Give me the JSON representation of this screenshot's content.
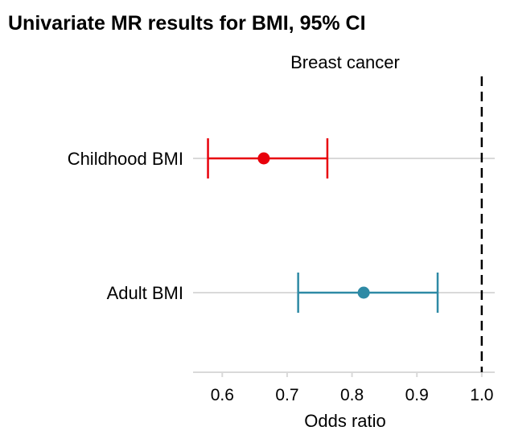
{
  "chart_data": {
    "type": "forest",
    "title": "Univariate MR results for BMI, 95% CI",
    "facet_label": "Breast cancer",
    "xlabel": "Odds ratio",
    "xlim": [
      0.555,
      1.02
    ],
    "xticks": [
      "0.6",
      "0.7",
      "0.8",
      "0.9",
      "1.0"
    ],
    "xtick_values": [
      0.6,
      0.7,
      0.8,
      0.9,
      1.0
    ],
    "reference_line": 1.0,
    "categories": [
      "Childhood BMI",
      "Adult BMI"
    ],
    "series": [
      {
        "name": "Childhood BMI",
        "estimate": 0.664,
        "ci_low": 0.578,
        "ci_high": 0.762,
        "color": "#e8000b"
      },
      {
        "name": "Adult BMI",
        "estimate": 0.818,
        "ci_low": 0.717,
        "ci_high": 0.932,
        "color": "#2e8aa5"
      }
    ],
    "grid": "horizontal",
    "legend": "none"
  },
  "colors": {
    "gridline": "#d9d9d9",
    "axis": "#d9d9d9",
    "reference": "#000000"
  }
}
